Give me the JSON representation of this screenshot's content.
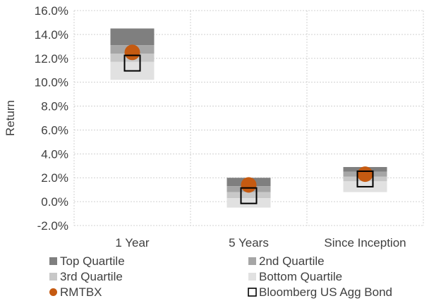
{
  "chart_data": {
    "type": "floating-bar-with-markers",
    "title": "",
    "xlabel": "",
    "ylabel": "Return",
    "ylim": [
      -0.02,
      0.16
    ],
    "yticks": [
      -0.02,
      0.0,
      0.02,
      0.04,
      0.06,
      0.08,
      0.1,
      0.12,
      0.14,
      0.16
    ],
    "ytick_labels": [
      "-2.0%",
      "0.0%",
      "2.0%",
      "4.0%",
      "6.0%",
      "8.0%",
      "10.0%",
      "12.0%",
      "14.0%",
      "16.0%"
    ],
    "categories": [
      "1 Year",
      "5 Years",
      "Since Inception"
    ],
    "grid": true,
    "legend_position": "bottom",
    "quartile_bands": [
      {
        "name": "Top Quartile",
        "color": "#7f7f7f",
        "ranges": [
          [
            0.131,
            0.145
          ],
          [
            0.013,
            0.02
          ],
          [
            0.025,
            0.029
          ]
        ]
      },
      {
        "name": "2nd Quartile",
        "color": "#a6a6a6",
        "ranges": [
          [
            0.124,
            0.131
          ],
          [
            0.008,
            0.013
          ],
          [
            0.021,
            0.025
          ]
        ]
      },
      {
        "name": "3rd Quartile",
        "color": "#c8c8c8",
        "ranges": [
          [
            0.117,
            0.124
          ],
          [
            0.003,
            0.008
          ],
          [
            0.017,
            0.021
          ]
        ]
      },
      {
        "name": "Bottom Quartile",
        "color": "#e1e1e1",
        "ranges": [
          [
            0.102,
            0.117
          ],
          [
            -0.005,
            0.003
          ],
          [
            0.008,
            0.017
          ]
        ]
      }
    ],
    "markers": [
      {
        "name": "RMTBX",
        "shape": "circle",
        "color": "#c55a11",
        "values": [
          0.125,
          0.014,
          0.023
        ]
      },
      {
        "name": "Bloomberg US Agg Bond",
        "shape": "square",
        "color": "#000000",
        "values": [
          0.116,
          0.005,
          0.019
        ]
      }
    ]
  }
}
